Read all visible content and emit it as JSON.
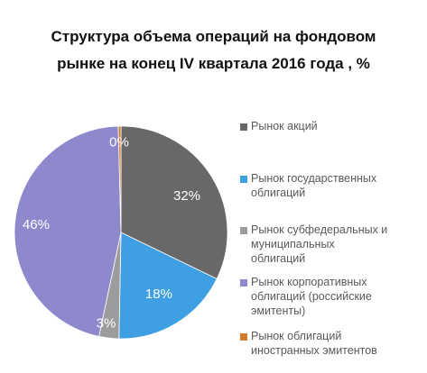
{
  "title": "Структура объема операций на фондовом\nрынке на конец IV квартала 2016 года , %",
  "chart_data": {
    "type": "pie",
    "title": "Структура объема операций на фондовом\nрынке на конец IV квартала 2016 года , %",
    "start_angle_deg": 0,
    "direction": "clockwise",
    "legend_position": "right",
    "slices": [
      {
        "label": "Рынок акций",
        "value": 32,
        "value_label": "32%",
        "color": "#686868"
      },
      {
        "label": "Рынок государственных\nоблигаций",
        "value": 18,
        "value_label": "18%",
        "color": "#3e9fe3"
      },
      {
        "label": "Рынок субфедеральных и\nмуниципальных\nоблигаций",
        "value": 3,
        "value_label": "3%",
        "color": "#9c9c9c"
      },
      {
        "label": "Рынок корпоративных\nоблигаций (российские\nэмитенты)",
        "value": 46,
        "value_label": "46%",
        "color": "#8e88cc"
      },
      {
        "label": "Рынок облигаций\nиностранных эмитентов",
        "value": 0.4,
        "value_label": "0%",
        "color": "#d27b2f"
      }
    ]
  }
}
